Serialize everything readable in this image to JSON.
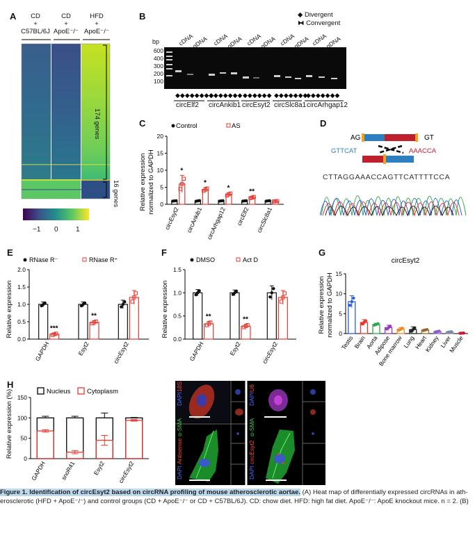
{
  "panels": {
    "A": {
      "label": "A",
      "groups": [
        {
          "line1": "CD",
          "line2": "+",
          "line3": "C57BL/6J"
        },
        {
          "line1": "CD",
          "line2": "+",
          "line3": "ApoE⁻/⁻"
        },
        {
          "line1": "HFD",
          "line2": "+",
          "line3": "ApoE⁻/⁻"
        }
      ],
      "bracket1": "174 genes",
      "bracket2": "16 genes",
      "colorbar_ticks": [
        "−1",
        "0",
        "1"
      ]
    },
    "B": {
      "label": "B",
      "legend": [
        "Divergent",
        "Convergent"
      ],
      "ylabel": "bp",
      "ladder": [
        "600",
        "400",
        "300",
        "200",
        "100"
      ],
      "lanes": [
        "cDNA",
        "gDNA",
        "cDNA",
        "gDNA",
        "cDNA",
        "gDNA",
        "cDNA",
        "gDNA",
        "cDNA",
        "gDNA"
      ],
      "genes": [
        "circElf2",
        "circAnkib1",
        "circEsyt2",
        "circSlc8a1",
        "circArhgap12"
      ]
    },
    "C": {
      "label": "C",
      "legend": [
        "Control",
        "AS"
      ],
      "ylabel1": "Relative expression",
      "ylabel2": "normalized to GAPDH",
      "yticks": [
        "0",
        "5",
        "10",
        "15",
        "20"
      ],
      "significance": [
        "*",
        "*",
        "*",
        "**",
        ""
      ]
    },
    "D": {
      "label": "D",
      "left_splice": "AG",
      "right_splice": "GT",
      "left_seq": "GTTCAT",
      "right_seq": "AAACCA",
      "sequence": "CTTAGGAAACCAGTTCATTTTCCA"
    },
    "E": {
      "label": "E",
      "legend": [
        "RNase R⁻",
        "RNase R⁺"
      ],
      "ylabel": "Relative expression",
      "yticks": [
        "0.0",
        "0.5",
        "1.0",
        "1.5",
        "2.0"
      ],
      "significance": [
        "***",
        "**",
        ""
      ]
    },
    "F": {
      "label": "F",
      "legend": [
        "DMSO",
        "Act D"
      ],
      "ylabel": "Relative expression",
      "yticks": [
        "0.0",
        "0.5",
        "1.0",
        "1.5"
      ],
      "significance": [
        "**",
        "**",
        ""
      ]
    },
    "G": {
      "label": "G",
      "title": "circEsyt2",
      "ylabel1": "Relative expression",
      "ylabel2": "normalized to GAPDH",
      "yticks": [
        "0",
        "5",
        "10",
        "15"
      ]
    },
    "H": {
      "label": "H",
      "legend": [
        "Nucleus",
        "Cytoplasm"
      ],
      "ylabel": "Relative expression (%)",
      "yticks": [
        "0",
        "50",
        "100",
        "150"
      ]
    },
    "fish": {
      "top_left": [
        "DAPI",
        "18S"
      ],
      "top_right": [
        "DAPI",
        "U6"
      ],
      "bottom_left": [
        "DAPI",
        "Antisense",
        "α-SMA"
      ],
      "bottom_right": [
        "DAPI",
        "circEsyt2",
        "α-SMA"
      ]
    }
  },
  "chart_data": [
    {
      "panel": "C",
      "type": "bar",
      "categories": [
        "circEsyt2",
        "circAnkib1",
        "circArhgap12",
        "circElf2",
        "circSlc8a1"
      ],
      "series": [
        {
          "name": "Control",
          "values": [
            1.0,
            1.0,
            1.0,
            1.0,
            1.0
          ],
          "errors": [
            0.1,
            0.15,
            0.1,
            0.1,
            0.1
          ]
        },
        {
          "name": "AS",
          "values": [
            6.0,
            4.3,
            2.9,
            2.0,
            0.9
          ],
          "errors": [
            2.5,
            0.6,
            0.5,
            0.3,
            0.1
          ]
        }
      ],
      "ylim": [
        0,
        20
      ]
    },
    {
      "panel": "E",
      "type": "bar",
      "categories": [
        "GAPDH",
        "Esyt2",
        "circEsyt2"
      ],
      "series": [
        {
          "name": "RNase R⁻",
          "values": [
            1.0,
            1.0,
            1.0
          ],
          "errors": [
            0.07,
            0.07,
            0.12
          ]
        },
        {
          "name": "RNase R⁺",
          "values": [
            0.14,
            0.48,
            1.2
          ],
          "errors": [
            0.03,
            0.05,
            0.2
          ]
        }
      ],
      "ylim": [
        0,
        2.0
      ]
    },
    {
      "panel": "F",
      "type": "bar",
      "categories": [
        "GAPDH",
        "Esyt2",
        "circEsyt2"
      ],
      "series": [
        {
          "name": "DMSO",
          "values": [
            1.0,
            1.0,
            1.0
          ],
          "errors": [
            0.07,
            0.06,
            0.15
          ]
        },
        {
          "name": "Act D",
          "values": [
            0.33,
            0.28,
            0.9
          ],
          "errors": [
            0.05,
            0.04,
            0.15
          ]
        }
      ],
      "ylim": [
        0,
        1.5
      ]
    },
    {
      "panel": "G",
      "type": "bar",
      "title": "circEsyt2",
      "categories": [
        "Testis",
        "Brain",
        "Aorta",
        "Adipose",
        "Bone marrow",
        "Lung",
        "Heart",
        "Kidney",
        "Liver",
        "Muscle"
      ],
      "values": [
        8.0,
        2.8,
        2.3,
        1.5,
        1.1,
        1.0,
        0.9,
        0.5,
        0.4,
        0.1
      ],
      "errors": [
        1.5,
        0.7,
        0.3,
        0.6,
        0.4,
        0.7,
        0.2,
        0.15,
        0.1,
        0.05
      ],
      "colors": [
        "#2b5fd9",
        "#e8382f",
        "#2aa84a",
        "#9a38c8",
        "#f08a1c",
        "#222222",
        "#9b6a2e",
        "#8a5cc7",
        "#7b8aa6",
        "#c21c2e"
      ],
      "ylim": [
        0,
        15
      ]
    },
    {
      "panel": "H",
      "type": "bar",
      "categories": [
        "GAPDH",
        "snoR41",
        "Esyt2",
        "circEsyt2"
      ],
      "series": [
        {
          "name": "Nucleus",
          "values": [
            100,
            100,
            100,
            100
          ],
          "errors": [
            4,
            4,
            12,
            1
          ]
        },
        {
          "name": "Cytoplasm",
          "values": [
            68,
            16,
            45,
            94
          ],
          "errors": [
            3,
            4,
            12,
            2
          ]
        }
      ],
      "ylim": [
        0,
        150
      ]
    }
  ],
  "caption": {
    "title": "Figure 1. Identification of circEsyt2 based on circRNA profiling of mouse atherosclerotic aortae.",
    "text1": " (A) Heat map of differentially expressed circRNAs in ath-",
    "text2": "erosclerotic (HFD + ApoE⁻/⁻) and control groups (CD + ApoE⁻/⁻ or CD + C57BL/6J). CD: chow diet. HFD: high fat diet. ApoE⁻/⁻: ApoE knockout mice. n = 2. (B)"
  },
  "colors": {
    "control": "#111111",
    "treated": "#e8382f",
    "highlight": "#bcd9ee"
  }
}
